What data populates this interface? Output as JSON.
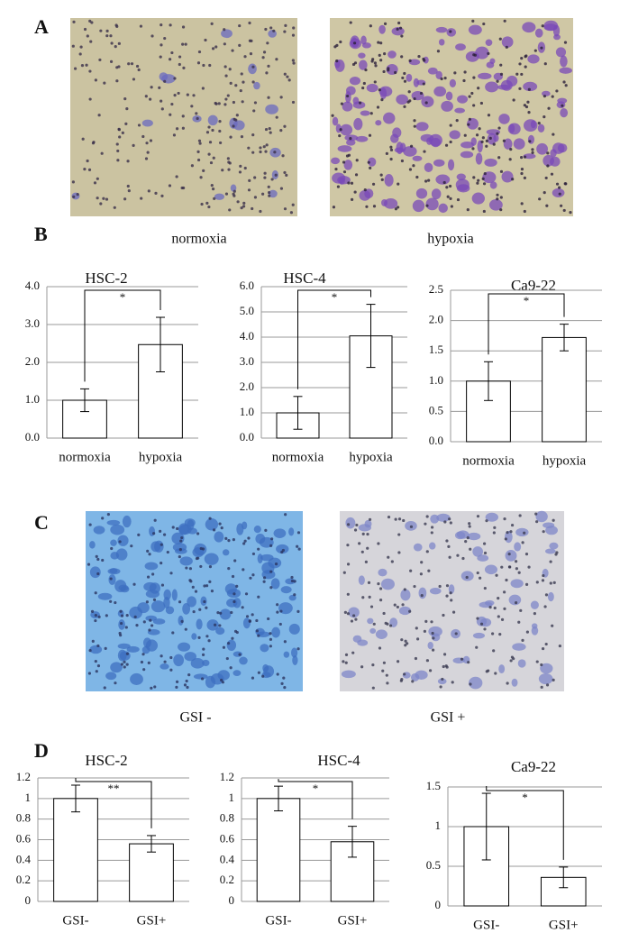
{
  "labels": [
    "A",
    "B",
    "C",
    "D"
  ],
  "captions": [
    "normoxia",
    "hypoxia",
    "GSI -",
    "GSI +"
  ],
  "chart_data": [
    {
      "type": "bar",
      "title": "HSC-2",
      "categories": [
        "normoxia",
        "hypoxia"
      ],
      "values": [
        1.0,
        2.47
      ],
      "errors": [
        0.3,
        0.72
      ],
      "significance": "*",
      "color": "#ffffff",
      "ylim": [
        0,
        4
      ],
      "yticks": [
        {
          "value": 0,
          "label": "0.0"
        },
        {
          "value": 1,
          "label": "1.0"
        },
        {
          "value": 2,
          "label": "2.0"
        },
        {
          "value": 3,
          "label": "3.0"
        },
        {
          "value": 4,
          "label": "4.0"
        }
      ],
      "grid": true
    },
    {
      "type": "bar",
      "title": "HSC-4",
      "categories": [
        "normoxia",
        "hypoxia"
      ],
      "values": [
        1.0,
        4.05
      ],
      "errors": [
        0.65,
        1.25
      ],
      "significance": "*",
      "color": "#ffffff",
      "ylim": [
        0,
        6
      ],
      "yticks": [
        {
          "value": 0,
          "label": "0.0"
        },
        {
          "value": 1,
          "label": "1.0"
        },
        {
          "value": 2,
          "label": "2.0"
        },
        {
          "value": 3,
          "label": "3.0"
        },
        {
          "value": 4,
          "label": "4.0"
        },
        {
          "value": 5,
          "label": "5.0"
        },
        {
          "value": 6,
          "label": "6.0"
        }
      ],
      "grid": true
    },
    {
      "type": "bar",
      "title": "Ca9-22",
      "categories": [
        "normoxia",
        "hypoxia"
      ],
      "values": [
        1.0,
        1.72
      ],
      "errors": [
        0.32,
        0.22
      ],
      "significance": "*",
      "color": "#ffffff",
      "ylim": [
        0,
        2.5
      ],
      "yticks": [
        {
          "value": 0,
          "label": "0.0"
        },
        0.5,
        {
          "value": 1,
          "label": "1.0"
        },
        1.5,
        {
          "value": 2,
          "label": "2.0"
        },
        2.5
      ],
      "grid": true
    },
    {
      "type": "bar",
      "title": "HSC-2",
      "categories": [
        "GSI-",
        "GSI+"
      ],
      "values": [
        1.0,
        0.56
      ],
      "errors": [
        0.13,
        0.08
      ],
      "significance": "**",
      "color": "#ffffff",
      "ylim": [
        0,
        1.2
      ],
      "yticks": [
        0,
        0.2,
        0.4,
        0.6,
        0.8,
        1,
        1.2
      ],
      "grid": true
    },
    {
      "type": "bar",
      "title": "HSC-4",
      "categories": [
        "GSI-",
        "GSI+"
      ],
      "values": [
        1.0,
        0.58
      ],
      "errors": [
        0.12,
        0.15
      ],
      "significance": "*",
      "color": "#ffffff",
      "ylim": [
        0,
        1.2
      ],
      "yticks": [
        0,
        0.2,
        0.4,
        0.6,
        0.8,
        1,
        1.2
      ],
      "grid": true
    },
    {
      "type": "bar",
      "title": "Ca9-22",
      "categories": [
        "GSI-",
        "GSI+"
      ],
      "values": [
        1.0,
        0.36
      ],
      "errors": [
        0.42,
        0.13
      ],
      "significance": "*",
      "color": "#ffffff",
      "ylim": [
        0,
        1.5
      ],
      "yticks": [
        0,
        0.5,
        1,
        1.5
      ],
      "grid": true
    }
  ]
}
